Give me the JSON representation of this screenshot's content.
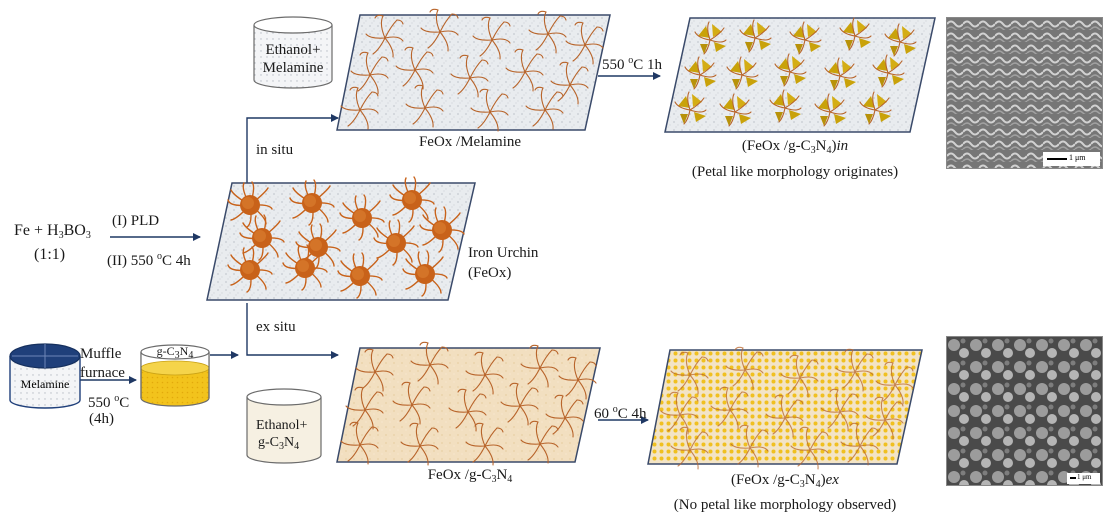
{
  "start": {
    "reactant_main": "Fe + H",
    "reactant_sub1": "3",
    "reactant_mid": "BO",
    "reactant_sub2": "3",
    "ratio": "(1:1)"
  },
  "step1": {
    "line1": "(I) PLD",
    "line2_pre": "(II) 550 ",
    "line2_sup": "o",
    "line2_post": "C 4h"
  },
  "iron_urchin": {
    "line1": "Iron Urchin",
    "line2": "(FeOx)"
  },
  "in_situ": {
    "label": "in situ",
    "beaker_line1": "Ethanol+",
    "beaker_line2": "Melamine",
    "panel_caption": "FeOx /Melamine",
    "step_pre": "550 ",
    "step_sup": "o",
    "step_post": "C 1h",
    "product_pre": "(FeOx /g-C",
    "product_sub1": "3",
    "product_mid": "N",
    "product_sub2": "4",
    "product_post": ")",
    "product_tag": "in",
    "note": "(Petal like morphology originates)"
  },
  "ex_situ": {
    "label": "ex situ",
    "muffle_line1": "Muffle",
    "muffle_line2": "furnace",
    "temp_pre": "550 ",
    "temp_sup": "o",
    "temp_post": "C",
    "time": "(4h)",
    "melamine": "Melamine",
    "gcn_pre": "g-C",
    "gcn_sub1": "3",
    "gcn_mid": "N",
    "gcn_sub2": "4",
    "beaker_line1": "Ethanol+",
    "beaker_line2_pre": "g-C",
    "beaker_line2_sub1": "3",
    "beaker_line2_mid": "N",
    "beaker_line2_sub2": "4",
    "panel_pre": "FeOx /g-C",
    "panel_sub1": "3",
    "panel_mid": "N",
    "panel_sub2": "4",
    "step_pre": "60 ",
    "step_sup": "o",
    "step_post": "C 4h",
    "product_pre": "(FeOx /g-C",
    "product_sub1": "3",
    "product_mid": "N",
    "product_sub2": "4",
    "product_post": ")",
    "product_tag": "ex",
    "note": "(No petal like morphology observed)"
  },
  "sem": {
    "scale_top": "1 μm",
    "scale_bottom": "1 μm"
  },
  "colors": {
    "urchin": "#c8621a",
    "fiber": "#b8642a",
    "petal": "#c9a20a",
    "gcn_yellow": "#f0c020",
    "panel_border": "#3a4a6a",
    "arrow": "#1f3864",
    "melamine_cap": "#1f3f7a"
  }
}
